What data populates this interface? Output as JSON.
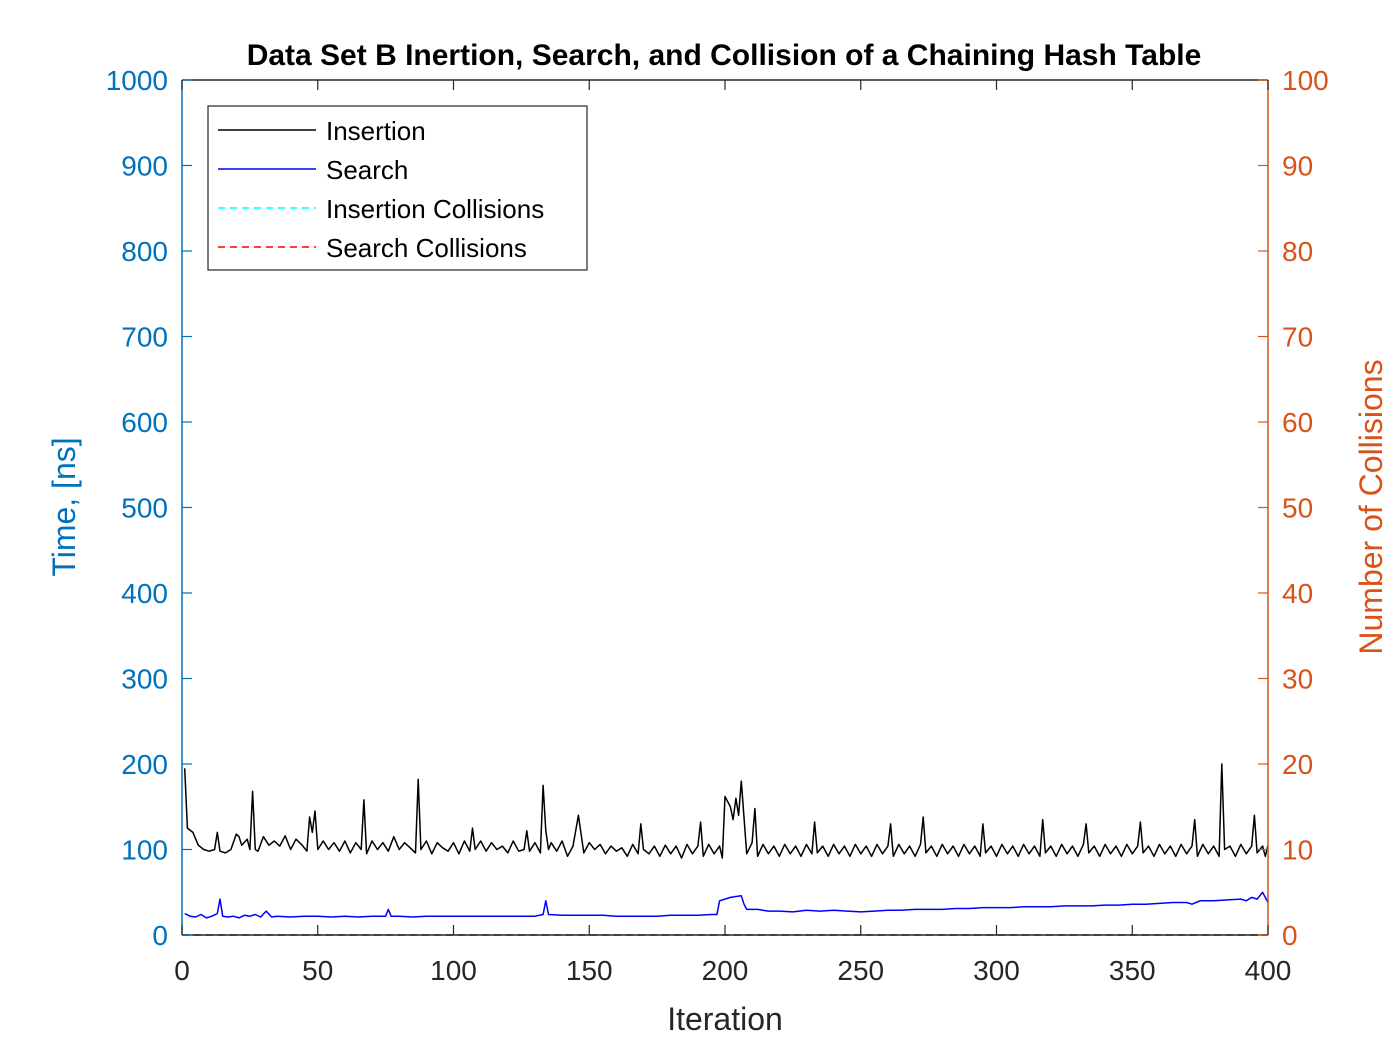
{
  "chart_data": {
    "type": "line",
    "title": "Data Set B Inertion, Search, and Collision of a Chaining Hash Table",
    "xlabel": "Iteration",
    "ylabel_left": "Time, [ns]",
    "ylabel_right": "Number of Collisions",
    "xlim": [
      0,
      400
    ],
    "ylim_left": [
      0,
      1000
    ],
    "ylim_right": [
      0,
      100
    ],
    "x_ticks": [
      "0",
      "50",
      "100",
      "150",
      "200",
      "250",
      "300",
      "350",
      "400"
    ],
    "y_ticks_left": [
      "0",
      "100",
      "200",
      "300",
      "400",
      "500",
      "600",
      "700",
      "800",
      "900",
      "1000"
    ],
    "y_ticks_right": [
      "0",
      "10",
      "20",
      "30",
      "40",
      "50",
      "60",
      "70",
      "80",
      "90",
      "100"
    ],
    "grid": false,
    "legend_position": "top-left",
    "colors": {
      "left_axis": "#0072bd",
      "right_axis": "#d95319",
      "insertion": "#000000",
      "search": "#0000ff",
      "insertion_collisions": "#00ffff",
      "search_collisions": "#ff0000"
    },
    "series": [
      {
        "name": "Insertion",
        "axis": "left",
        "style": "solid",
        "x": [
          1,
          2,
          4,
          6,
          8,
          10,
          12,
          13,
          14,
          16,
          18,
          20,
          21,
          22,
          24,
          25,
          26,
          27,
          28,
          30,
          32,
          34,
          36,
          38,
          40,
          42,
          44,
          46,
          47,
          48,
          49,
          50,
          52,
          54,
          56,
          58,
          60,
          62,
          64,
          66,
          67,
          68,
          70,
          72,
          74,
          76,
          78,
          80,
          82,
          84,
          86,
          87,
          88,
          90,
          92,
          94,
          96,
          98,
          100,
          102,
          104,
          106,
          107,
          108,
          110,
          112,
          114,
          116,
          118,
          120,
          122,
          124,
          126,
          127,
          128,
          130,
          132,
          133,
          134,
          135,
          136,
          138,
          140,
          142,
          144,
          146,
          148,
          150,
          152,
          154,
          156,
          158,
          160,
          162,
          164,
          166,
          168,
          169,
          170,
          172,
          174,
          176,
          178,
          180,
          182,
          184,
          186,
          188,
          190,
          191,
          192,
          194,
          196,
          198,
          199,
          200,
          202,
          203,
          204,
          205,
          206,
          208,
          210,
          211,
          212,
          214,
          216,
          218,
          220,
          222,
          224,
          226,
          228,
          230,
          232,
          233,
          234,
          236,
          238,
          240,
          242,
          244,
          246,
          248,
          250,
          252,
          254,
          256,
          258,
          260,
          261,
          262,
          264,
          266,
          268,
          270,
          272,
          273,
          274,
          276,
          278,
          280,
          282,
          284,
          286,
          288,
          290,
          292,
          294,
          295,
          296,
          298,
          300,
          302,
          304,
          306,
          308,
          310,
          312,
          314,
          316,
          317,
          318,
          320,
          322,
          324,
          326,
          328,
          330,
          332,
          333,
          334,
          336,
          338,
          340,
          342,
          344,
          346,
          348,
          350,
          352,
          353,
          354,
          356,
          358,
          360,
          362,
          364,
          366,
          368,
          370,
          372,
          373,
          374,
          376,
          378,
          380,
          382,
          383,
          384,
          386,
          388,
          390,
          392,
          394,
          395,
          396,
          398,
          399,
          400
        ],
        "values": [
          195,
          125,
          120,
          105,
          100,
          98,
          100,
          120,
          98,
          96,
          100,
          118,
          115,
          105,
          112,
          100,
          168,
          100,
          98,
          115,
          105,
          110,
          104,
          116,
          100,
          112,
          106,
          98,
          138,
          120,
          145,
          100,
          110,
          100,
          108,
          98,
          110,
          96,
          108,
          100,
          158,
          95,
          110,
          100,
          108,
          98,
          115,
          100,
          108,
          102,
          96,
          182,
          100,
          110,
          95,
          108,
          102,
          98,
          108,
          95,
          110,
          98,
          125,
          100,
          110,
          98,
          108,
          100,
          104,
          96,
          110,
          98,
          100,
          122,
          98,
          108,
          96,
          175,
          122,
          100,
          108,
          98,
          110,
          92,
          104,
          140,
          96,
          108,
          100,
          106,
          95,
          104,
          98,
          102,
          92,
          106,
          95,
          130,
          100,
          95,
          104,
          92,
          105,
          95,
          104,
          90,
          106,
          95,
          104,
          132,
          92,
          106,
          95,
          104,
          90,
          162,
          150,
          135,
          160,
          140,
          180,
          95,
          108,
          148,
          92,
          106,
          95,
          104,
          92,
          106,
          95,
          104,
          92,
          106,
          95,
          132,
          96,
          104,
          92,
          106,
          95,
          104,
          92,
          106,
          95,
          104,
          92,
          106,
          95,
          104,
          130,
          92,
          106,
          95,
          104,
          92,
          106,
          138,
          96,
          104,
          92,
          106,
          95,
          104,
          92,
          106,
          95,
          104,
          92,
          130,
          96,
          104,
          92,
          106,
          95,
          104,
          92,
          106,
          95,
          104,
          92,
          135,
          96,
          104,
          92,
          106,
          95,
          104,
          92,
          106,
          130,
          96,
          104,
          92,
          106,
          95,
          104,
          92,
          106,
          95,
          104,
          132,
          96,
          104,
          92,
          106,
          95,
          104,
          92,
          106,
          95,
          104,
          135,
          92,
          106,
          95,
          104,
          92,
          200,
          100,
          104,
          92,
          106,
          95,
          104,
          140,
          96,
          104,
          92,
          105
        ]
      },
      {
        "name": "Search",
        "axis": "left",
        "style": "solid",
        "x": [
          1,
          3,
          5,
          7,
          9,
          11,
          13,
          14,
          15,
          17,
          19,
          21,
          23,
          25,
          27,
          29,
          31,
          33,
          35,
          40,
          45,
          50,
          55,
          60,
          65,
          70,
          75,
          76,
          77,
          80,
          85,
          90,
          95,
          100,
          105,
          110,
          115,
          120,
          125,
          130,
          133,
          134,
          135,
          140,
          145,
          150,
          155,
          160,
          165,
          170,
          175,
          180,
          185,
          190,
          195,
          197,
          198,
          200,
          202,
          204,
          206,
          207,
          208,
          212,
          216,
          220,
          225,
          230,
          235,
          240,
          245,
          250,
          255,
          260,
          265,
          270,
          275,
          280,
          285,
          290,
          295,
          300,
          305,
          310,
          315,
          320,
          325,
          330,
          335,
          340,
          345,
          350,
          355,
          360,
          365,
          370,
          372,
          375,
          380,
          385,
          390,
          392,
          394,
          396,
          398,
          400
        ],
        "values": [
          25,
          22,
          21,
          24,
          20,
          22,
          25,
          42,
          22,
          21,
          22,
          20,
          23,
          22,
          24,
          21,
          28,
          21,
          22,
          21,
          22,
          22,
          21,
          22,
          21,
          22,
          22,
          30,
          22,
          22,
          21,
          22,
          22,
          22,
          22,
          22,
          22,
          22,
          22,
          22,
          24,
          40,
          24,
          23,
          23,
          23,
          23,
          22,
          22,
          22,
          22,
          23,
          23,
          23,
          24,
          24,
          40,
          42,
          44,
          45,
          46,
          36,
          30,
          30,
          28,
          28,
          27,
          29,
          28,
          29,
          28,
          27,
          28,
          29,
          29,
          30,
          30,
          30,
          31,
          31,
          32,
          32,
          32,
          33,
          33,
          33,
          34,
          34,
          34,
          35,
          35,
          36,
          36,
          37,
          38,
          38,
          36,
          40,
          40,
          41,
          42,
          40,
          44,
          42,
          50,
          38
        ]
      },
      {
        "name": "Insertion Collisions",
        "axis": "right",
        "style": "dashed",
        "x": [
          0,
          400
        ],
        "values": [
          0,
          0
        ]
      },
      {
        "name": "Search Collisions",
        "axis": "right",
        "style": "dashed",
        "x": [
          0,
          400
        ],
        "values": [
          0,
          0
        ]
      }
    ]
  }
}
